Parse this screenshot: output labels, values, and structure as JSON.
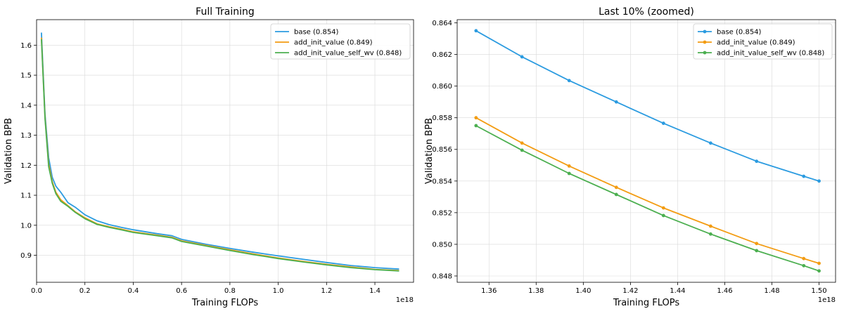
{
  "chart_data": [
    {
      "type": "line",
      "title": "Full Training",
      "xlabel": "Training FLOPs",
      "ylabel": "Validation BPB",
      "x_offset_label": "1e18",
      "xlim": [
        0,
        1.56
      ],
      "ylim": [
        0.81,
        1.685
      ],
      "xticks": [
        0.0,
        0.2,
        0.4,
        0.6,
        0.8,
        1.0,
        1.2,
        1.4
      ],
      "xtick_labels": [
        "0.0",
        "0.2",
        "0.4",
        "0.6",
        "0.8",
        "1.0",
        "1.2",
        "1.4"
      ],
      "yticks": [
        0.9,
        1.0,
        1.1,
        1.2,
        1.3,
        1.4,
        1.5,
        1.6
      ],
      "ytick_labels": [
        "0.9",
        "1.0",
        "1.1",
        "1.2",
        "1.3",
        "1.4",
        "1.5",
        "1.6"
      ],
      "grid": true,
      "legend_position": "top-right",
      "markers": false,
      "series": [
        {
          "name": "base (0.854)",
          "color": "#2b9be0",
          "x": [
            0.02,
            0.035,
            0.05,
            0.065,
            0.08,
            0.1,
            0.13,
            0.16,
            0.2,
            0.25,
            0.3,
            0.35,
            0.4,
            0.5,
            0.56,
            0.6,
            0.7,
            0.8,
            0.9,
            1.0,
            1.1,
            1.2,
            1.3,
            1.4,
            1.5
          ],
          "y": [
            1.642,
            1.37,
            1.225,
            1.16,
            1.13,
            1.11,
            1.075,
            1.06,
            1.035,
            1.015,
            1.002,
            0.993,
            0.985,
            0.972,
            0.965,
            0.953,
            0.937,
            0.923,
            0.91,
            0.898,
            0.887,
            0.876,
            0.866,
            0.859,
            0.854
          ]
        },
        {
          "name": "add_init_value (0.849)",
          "color": "#f39c12",
          "x": [
            0.02,
            0.035,
            0.05,
            0.065,
            0.08,
            0.1,
            0.13,
            0.16,
            0.2,
            0.25,
            0.3,
            0.35,
            0.4,
            0.5,
            0.56,
            0.6,
            0.7,
            0.8,
            0.9,
            1.0,
            1.1,
            1.2,
            1.3,
            1.4,
            1.5
          ],
          "y": [
            1.625,
            1.36,
            1.205,
            1.145,
            1.11,
            1.085,
            1.065,
            1.045,
            1.025,
            1.005,
            0.995,
            0.987,
            0.978,
            0.967,
            0.96,
            0.948,
            0.933,
            0.918,
            0.904,
            0.891,
            0.88,
            0.87,
            0.861,
            0.853,
            0.849
          ]
        },
        {
          "name": "add_init_value_self_wv (0.848)",
          "color": "#4caf50",
          "x": [
            0.02,
            0.035,
            0.05,
            0.065,
            0.08,
            0.1,
            0.13,
            0.16,
            0.2,
            0.25,
            0.3,
            0.35,
            0.4,
            0.5,
            0.56,
            0.6,
            0.7,
            0.8,
            0.9,
            1.0,
            1.1,
            1.2,
            1.3,
            1.4,
            1.5
          ],
          "y": [
            1.62,
            1.355,
            1.195,
            1.14,
            1.105,
            1.08,
            1.063,
            1.043,
            1.022,
            1.003,
            0.993,
            0.985,
            0.976,
            0.965,
            0.958,
            0.946,
            0.931,
            0.916,
            0.902,
            0.889,
            0.878,
            0.868,
            0.859,
            0.852,
            0.848
          ]
        }
      ]
    },
    {
      "type": "line",
      "title": "Last 10% (zoomed)",
      "xlabel": "Training FLOPs",
      "ylabel": "Validation BPB",
      "x_offset_label": "1e18",
      "xlim": [
        1.3465,
        1.507
      ],
      "ylim": [
        0.8476,
        0.8642
      ],
      "xticks": [
        1.36,
        1.38,
        1.4,
        1.42,
        1.44,
        1.46,
        1.48,
        1.5
      ],
      "xtick_labels": [
        "1.36",
        "1.38",
        "1.40",
        "1.42",
        "1.44",
        "1.46",
        "1.48",
        "1.50"
      ],
      "yticks": [
        0.848,
        0.85,
        0.852,
        0.854,
        0.856,
        0.858,
        0.86,
        0.862,
        0.864
      ],
      "ytick_labels": [
        "0.848",
        "0.850",
        "0.852",
        "0.854",
        "0.856",
        "0.858",
        "0.860",
        "0.862",
        "0.864"
      ],
      "grid": true,
      "legend_position": "top-right",
      "markers": true,
      "series": [
        {
          "name": "base (0.854)",
          "color": "#2b9be0",
          "x": [
            1.3545,
            1.374,
            1.394,
            1.414,
            1.434,
            1.454,
            1.4735,
            1.4935,
            1.5
          ],
          "y": [
            0.8635,
            0.86185,
            0.86035,
            0.859,
            0.85765,
            0.8564,
            0.85525,
            0.8543,
            0.854
          ]
        },
        {
          "name": "add_init_value (0.849)",
          "color": "#f39c12",
          "x": [
            1.3545,
            1.374,
            1.394,
            1.414,
            1.434,
            1.454,
            1.4735,
            1.4935,
            1.5
          ],
          "y": [
            0.858,
            0.8564,
            0.85495,
            0.8536,
            0.8523,
            0.85115,
            0.85005,
            0.8491,
            0.8488
          ]
        },
        {
          "name": "add_init_value_self_wv (0.848)",
          "color": "#4caf50",
          "x": [
            1.3545,
            1.374,
            1.394,
            1.414,
            1.434,
            1.454,
            1.4735,
            1.4935,
            1.5
          ],
          "y": [
            0.8575,
            0.85595,
            0.85448,
            0.85315,
            0.85182,
            0.85065,
            0.8496,
            0.84865,
            0.84832
          ]
        }
      ]
    }
  ]
}
